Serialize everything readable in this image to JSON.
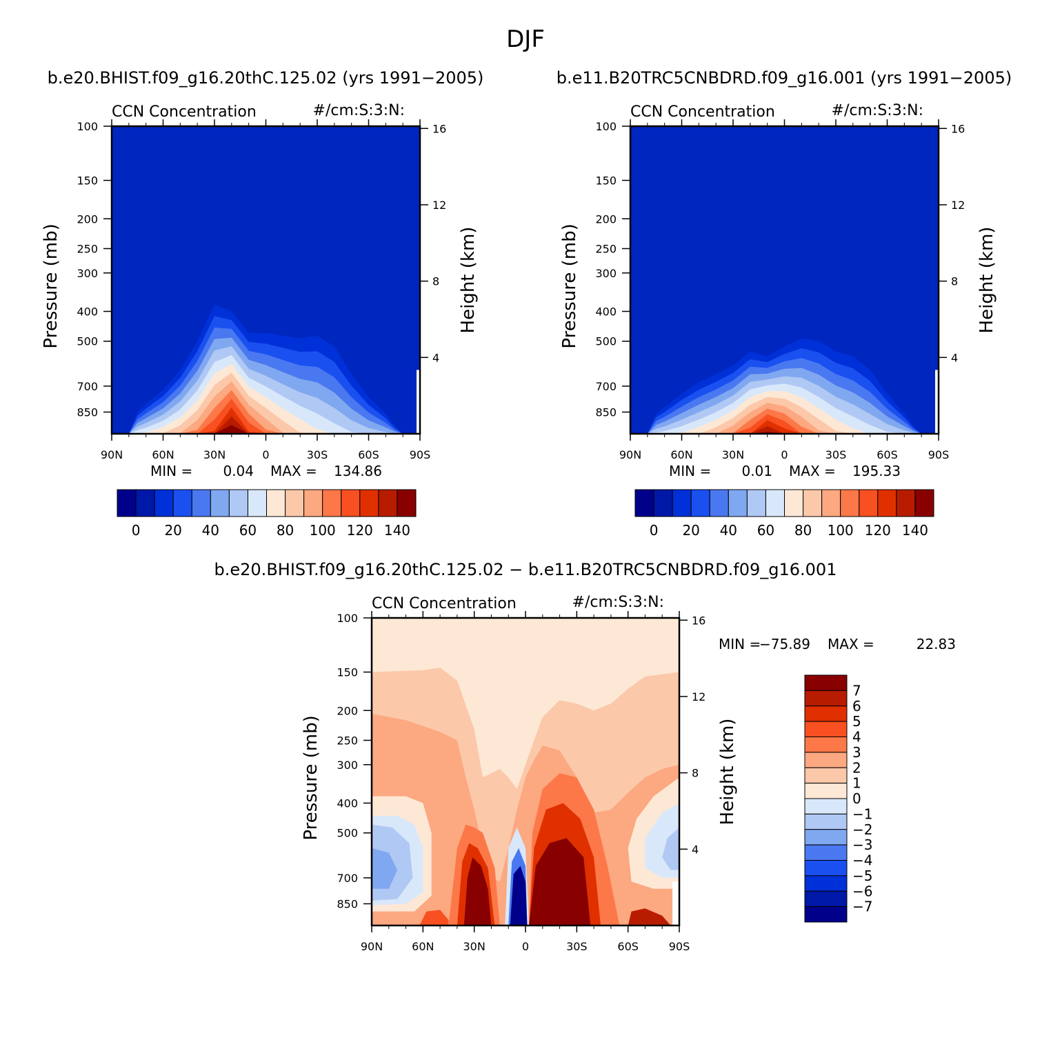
{
  "figure": {
    "title": "DJF"
  },
  "colors": {
    "cmap16": [
      "#00008b",
      "#0018a8",
      "#0030d8",
      "#1a50f0",
      "#4a78f0",
      "#80a8f0",
      "#b0c8f4",
      "#d8e8fa",
      "#fde8d6",
      "#fcc8aa",
      "#fca880",
      "#fc7848",
      "#f85020",
      "#e03000",
      "#b81c00",
      "#880000"
    ],
    "diff_cmap": [
      "#00008b",
      "#0018a8",
      "#0030d8",
      "#1a50f0",
      "#4a78f0",
      "#80a8f0",
      "#b0c8f4",
      "#d8e8fa",
      "#fde8d6",
      "#fcc8aa",
      "#fca880",
      "#fc7848",
      "#f85020",
      "#e03000",
      "#b81c00",
      "#880000"
    ],
    "background_low": "#0026c0"
  },
  "chart_data": [
    {
      "type": "heatmap",
      "panel_title": "b.e20.BHIST.f09_g16.20thC.125.02 (yrs 1991−2005)",
      "left_string": "CCN Concentration",
      "right_string": "#/cm:S:3:N:",
      "ylabel": "Pressure (mb)",
      "ylabel2": "Height (km)",
      "x_ticks": [
        "90N",
        "60N",
        "30N",
        "0",
        "30S",
        "60S",
        "90S"
      ],
      "y_ticks": [
        "100",
        "150",
        "200",
        "250",
        "300",
        "400",
        "500",
        "700",
        "850"
      ],
      "y_values": [
        100,
        150,
        200,
        250,
        300,
        400,
        500,
        700,
        850
      ],
      "ylim": [
        100,
        1000
      ],
      "height_ticks": [
        "16",
        "12",
        "8",
        "4"
      ],
      "height_values": [
        16,
        12,
        8,
        4
      ],
      "min_label": "MIN =",
      "min_value": "0.04",
      "max_label": "MAX =",
      "max_value": "134.86",
      "colorbar_ticks": [
        "0",
        "20",
        "40",
        "60",
        "80",
        "100",
        "120",
        "140"
      ],
      "colorbar_values": [
        0,
        20,
        40,
        60,
        80,
        100,
        120,
        140
      ],
      "colorbar_range": [
        -10,
        150
      ],
      "profile_lat": [
        -90,
        -80,
        -75,
        -70,
        -60,
        -50,
        -40,
        -30,
        -20,
        -10,
        0,
        10,
        20,
        30,
        40,
        50,
        60,
        70,
        75,
        80,
        90
      ],
      "profile_top_mb": [
        1000,
        1000,
        940,
        860,
        760,
        640,
        520,
        480,
        490,
        480,
        470,
        470,
        400,
        380,
        500,
        620,
        720,
        800,
        850,
        1000,
        1000
      ]
    },
    {
      "type": "heatmap",
      "panel_title": "b.e11.B20TRC5CNBDRD.f09_g16.001 (yrs 1991−2005)",
      "left_string": "CCN Concentration",
      "right_string": "#/cm:S:3:N:",
      "ylabel": "Pressure (mb)",
      "ylabel2": "Height (km)",
      "x_ticks": [
        "90N",
        "60N",
        "30N",
        "0",
        "30S",
        "60S",
        "90S"
      ],
      "y_ticks": [
        "100",
        "150",
        "200",
        "250",
        "300",
        "400",
        "500",
        "700",
        "850"
      ],
      "y_values": [
        100,
        150,
        200,
        250,
        300,
        400,
        500,
        700,
        850
      ],
      "ylim": [
        100,
        1000
      ],
      "height_ticks": [
        "16",
        "12",
        "8",
        "4"
      ],
      "height_values": [
        16,
        12,
        8,
        4
      ],
      "min_label": "MIN =",
      "min_value": "0.01",
      "max_label": "MAX =",
      "max_value": "195.33",
      "colorbar_ticks": [
        "0",
        "20",
        "40",
        "60",
        "80",
        "100",
        "120",
        "140"
      ],
      "colorbar_values": [
        0,
        20,
        40,
        60,
        80,
        100,
        120,
        140
      ],
      "colorbar_range": [
        -10,
        150
      ],
      "profile_lat": [
        -90,
        -80,
        -75,
        -70,
        -60,
        -50,
        -40,
        -30,
        -20,
        -10,
        0,
        10,
        20,
        30,
        40,
        50,
        60,
        70,
        75,
        80,
        90
      ],
      "profile_top_mb": [
        1000,
        1000,
        940,
        860,
        740,
        620,
        560,
        540,
        500,
        490,
        520,
        560,
        540,
        600,
        640,
        680,
        740,
        820,
        860,
        1000,
        1000
      ]
    },
    {
      "type": "heatmap",
      "panel_title": "b.e20.BHIST.f09_g16.20thC.125.02 − b.e11.B20TRC5CNBDRD.f09_g16.001",
      "left_string": "CCN Concentration",
      "right_string": "#/cm:S:3:N:",
      "ylabel": "Pressure (mb)",
      "ylabel2": "Height (km)",
      "x_ticks": [
        "90N",
        "60N",
        "30N",
        "0",
        "30S",
        "60S",
        "90S"
      ],
      "y_ticks": [
        "100",
        "150",
        "200",
        "250",
        "300",
        "400",
        "500",
        "700",
        "850"
      ],
      "y_values": [
        100,
        150,
        200,
        250,
        300,
        400,
        500,
        700,
        850
      ],
      "ylim": [
        100,
        1000
      ],
      "height_ticks": [
        "16",
        "12",
        "8",
        "4"
      ],
      "height_values": [
        16,
        12,
        8,
        4
      ],
      "min_label": "MIN =",
      "min_value": "−75.89",
      "max_label": "MAX =",
      "max_value": "22.83",
      "colorbar_labels": [
        "7",
        "6",
        "5",
        "4",
        "3",
        "2",
        "1",
        "0",
        "−1",
        "−2",
        "−3",
        "−4",
        "−5",
        "−6",
        "−7"
      ],
      "colorbar_values": [
        7,
        6,
        5,
        4,
        3,
        2,
        1,
        0,
        -1,
        -2,
        -3,
        -4,
        -5,
        -6,
        -7
      ]
    }
  ]
}
